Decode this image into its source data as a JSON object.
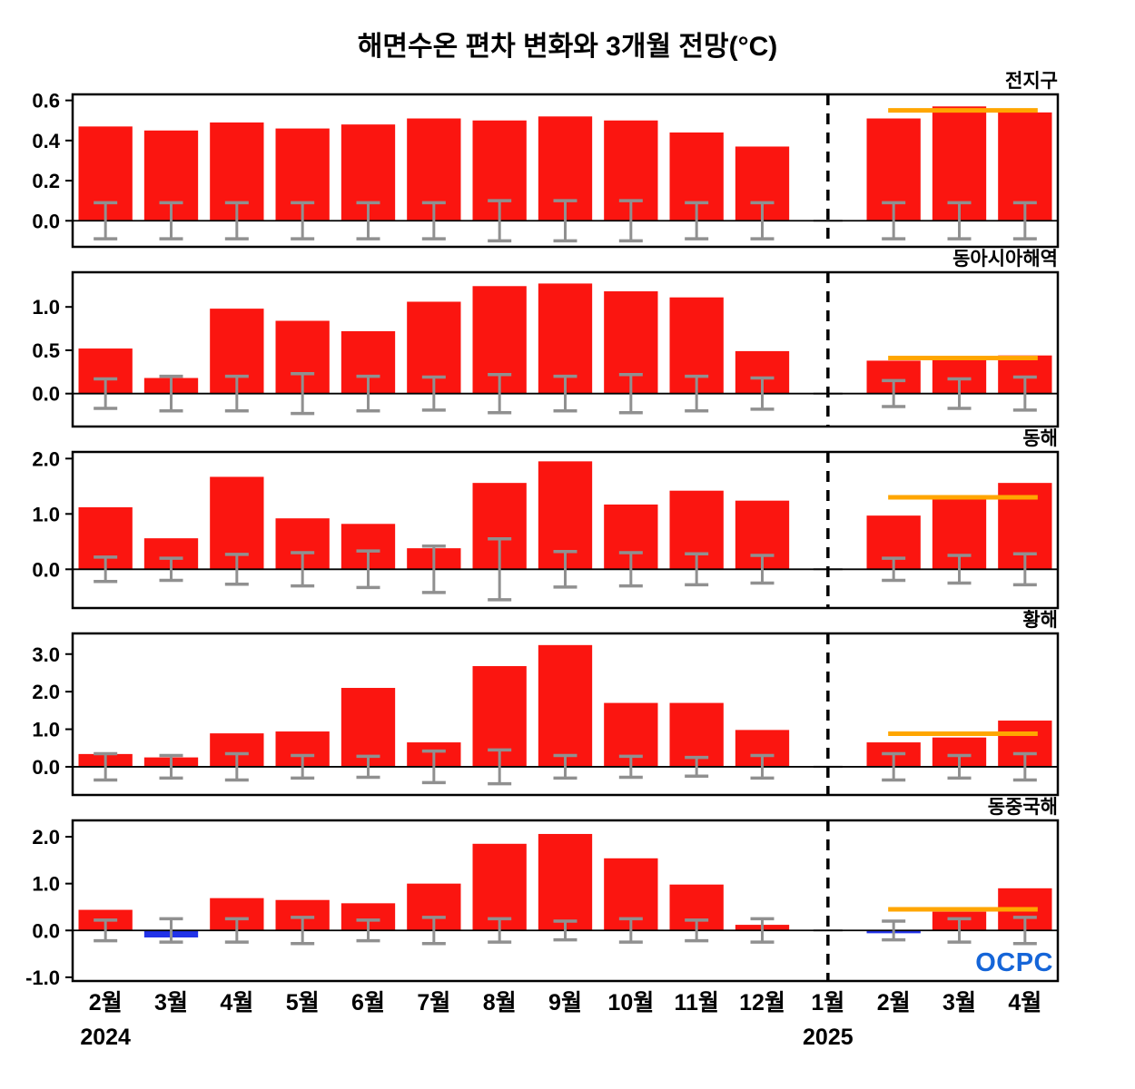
{
  "title": "해면수온 편차 변화와 3개월 전망(°C)",
  "logo_text": "OCPC",
  "x_axis": {
    "month_labels": [
      "2월",
      "3월",
      "4월",
      "5월",
      "6월",
      "7월",
      "8월",
      "9월",
      "10월",
      "11월",
      "12월",
      "1월",
      "2월",
      "3월",
      "4월"
    ],
    "year_labels": [
      {
        "label": "2024",
        "slot": 0
      },
      {
        "label": "2025",
        "slot": 11
      }
    ]
  },
  "divider_slot": 11,
  "forecast_slots": [
    12,
    13,
    14
  ],
  "colors": {
    "bar_positive": "#fb1510",
    "bar_negative": "#2233e8",
    "forecast_line": "#ffa600",
    "error_bar": "#909090",
    "no_data_marker": "#b0b0b0",
    "divider": "#000000",
    "axis": "#000000",
    "logo_blue": "#1565d8"
  },
  "chart_data": [
    {
      "type": "bar",
      "title": "전지구",
      "xlabel": "",
      "ylabel": "",
      "ylim": [
        -0.13,
        0.63
      ],
      "yticks": [
        0.0,
        0.2,
        0.4,
        0.6
      ],
      "values": [
        0.47,
        0.45,
        0.49,
        0.46,
        0.48,
        0.51,
        0.5,
        0.52,
        0.5,
        0.44,
        0.37,
        null,
        0.51,
        0.57,
        0.54
      ],
      "errors": [
        0.09,
        0.09,
        0.09,
        0.09,
        0.09,
        0.09,
        0.1,
        0.1,
        0.1,
        0.09,
        0.09,
        null,
        0.09,
        0.09,
        0.09
      ],
      "forecast_value": 0.55
    },
    {
      "type": "bar",
      "title": "동아시아해역",
      "xlabel": "",
      "ylabel": "",
      "ylim": [
        -0.38,
        1.4
      ],
      "yticks": [
        0.0,
        0.5,
        1.0
      ],
      "values": [
        0.52,
        0.18,
        0.98,
        0.84,
        0.72,
        1.06,
        1.24,
        1.27,
        1.18,
        1.11,
        0.49,
        null,
        0.38,
        0.39,
        0.44
      ],
      "errors": [
        0.17,
        0.2,
        0.2,
        0.23,
        0.2,
        0.19,
        0.22,
        0.2,
        0.22,
        0.2,
        0.18,
        null,
        0.15,
        0.17,
        0.19
      ],
      "forecast_value": 0.41
    },
    {
      "type": "bar",
      "title": "동해",
      "xlabel": "",
      "ylabel": "",
      "ylim": [
        -0.7,
        2.12
      ],
      "yticks": [
        0.0,
        1.0,
        2.0
      ],
      "values": [
        1.12,
        0.56,
        1.67,
        0.92,
        0.82,
        0.38,
        1.56,
        1.95,
        1.17,
        1.42,
        1.24,
        null,
        0.97,
        1.32,
        1.56
      ],
      "errors": [
        0.22,
        0.2,
        0.27,
        0.3,
        0.33,
        0.42,
        0.55,
        0.32,
        0.3,
        0.28,
        0.25,
        null,
        0.2,
        0.25,
        0.28
      ],
      "forecast_value": 1.3
    },
    {
      "type": "bar",
      "title": "황해",
      "xlabel": "",
      "ylabel": "",
      "ylim": [
        -0.75,
        3.55
      ],
      "yticks": [
        0.0,
        1.0,
        2.0,
        3.0
      ],
      "values": [
        0.34,
        0.25,
        0.89,
        0.94,
        2.1,
        0.65,
        2.68,
        3.24,
        1.7,
        1.7,
        0.98,
        null,
        0.65,
        0.78,
        1.23
      ],
      "errors": [
        0.35,
        0.3,
        0.35,
        0.3,
        0.28,
        0.42,
        0.45,
        0.3,
        0.28,
        0.25,
        0.3,
        null,
        0.35,
        0.3,
        0.35
      ],
      "forecast_value": 0.88
    },
    {
      "type": "bar",
      "title": "동중국해",
      "xlabel": "",
      "ylabel": "",
      "ylim": [
        -1.08,
        2.35
      ],
      "yticks": [
        -1.0,
        0.0,
        1.0,
        2.0
      ],
      "values": [
        0.44,
        -0.15,
        0.69,
        0.65,
        0.58,
        1.0,
        1.85,
        2.06,
        1.54,
        0.98,
        0.12,
        null,
        -0.06,
        0.4,
        0.9
      ],
      "errors": [
        0.22,
        0.25,
        0.25,
        0.28,
        0.22,
        0.28,
        0.25,
        0.2,
        0.25,
        0.22,
        0.25,
        null,
        0.2,
        0.25,
        0.28
      ],
      "forecast_value": 0.45
    }
  ]
}
